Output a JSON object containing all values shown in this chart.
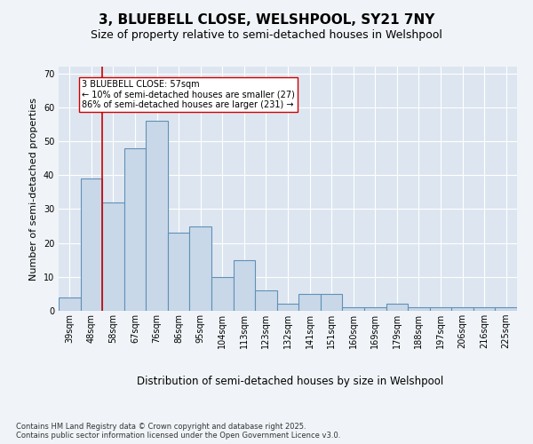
{
  "title1": "3, BLUEBELL CLOSE, WELSHPOOL, SY21 7NY",
  "title2": "Size of property relative to semi-detached houses in Welshpool",
  "xlabel": "Distribution of semi-detached houses by size in Welshpool",
  "ylabel": "Number of semi-detached properties",
  "categories": [
    "39sqm",
    "48sqm",
    "58sqm",
    "67sqm",
    "76sqm",
    "86sqm",
    "95sqm",
    "104sqm",
    "113sqm",
    "123sqm",
    "132sqm",
    "141sqm",
    "151sqm",
    "160sqm",
    "169sqm",
    "179sqm",
    "188sqm",
    "197sqm",
    "206sqm",
    "216sqm",
    "225sqm"
  ],
  "values": [
    4,
    39,
    32,
    48,
    56,
    23,
    25,
    10,
    15,
    6,
    2,
    5,
    5,
    1,
    1,
    2,
    1,
    1,
    1,
    1,
    1
  ],
  "bar_color": "#c8d8e8",
  "bar_edge_color": "#6090b8",
  "bar_linewidth": 0.8,
  "vline_x": 1.5,
  "vline_color": "#cc0000",
  "annotation_text": "3 BLUEBELL CLOSE: 57sqm\n← 10% of semi-detached houses are smaller (27)\n86% of semi-detached houses are larger (231) →",
  "ylim": [
    0,
    72
  ],
  "yticks": [
    0,
    10,
    20,
    30,
    40,
    50,
    60,
    70
  ],
  "background_color": "#dde6f0",
  "grid_color": "#ffffff",
  "footnote": "Contains HM Land Registry data © Crown copyright and database right 2025.\nContains public sector information licensed under the Open Government Licence v3.0.",
  "title1_fontsize": 11,
  "title2_fontsize": 9,
  "xlabel_fontsize": 8.5,
  "ylabel_fontsize": 8,
  "tick_fontsize": 7,
  "annotation_fontsize": 7,
  "footnote_fontsize": 6
}
